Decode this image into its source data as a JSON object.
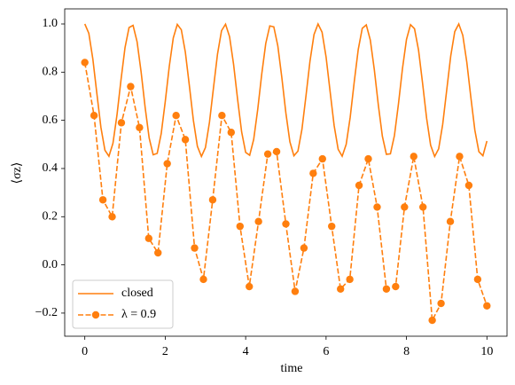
{
  "chart_data": {
    "type": "line",
    "xlabel": "time",
    "ylabel": "⟨σz⟩",
    "xlim": [
      -0.5,
      10.5
    ],
    "ylim": [
      -0.296,
      1.0626
    ],
    "xticks": [
      0,
      2,
      4,
      6,
      8,
      10
    ],
    "yticks": [
      {
        "value": -0.2,
        "label": "−0.2"
      },
      {
        "value": 0,
        "label": "0.0"
      },
      0.2,
      0.4,
      0.6,
      0.8,
      {
        "value": 1,
        "label": "1.0"
      }
    ],
    "grid": false,
    "legend": "lower left",
    "series": [
      {
        "name": "closed",
        "color": "#ff7f0e",
        "linestyle": "solid",
        "marker": "none",
        "x": [
          0,
          0.1,
          0.2,
          0.3,
          0.4,
          0.5,
          0.6,
          0.7,
          0.8,
          0.9,
          1,
          1.1,
          1.2,
          1.3,
          1.4,
          1.5,
          1.6,
          1.7,
          1.8,
          1.9,
          2,
          2.1,
          2.2,
          2.3,
          2.4,
          2.5,
          2.6,
          2.7,
          2.8,
          2.9,
          3,
          3.1,
          3.2,
          3.3,
          3.4,
          3.5,
          3.6,
          3.7,
          3.8,
          3.9,
          4,
          4.1,
          4.2,
          4.3,
          4.4,
          4.5,
          4.6,
          4.7,
          4.8,
          4.9,
          5,
          5.1,
          5.2,
          5.3,
          5.4,
          5.5,
          5.6,
          5.7,
          5.8,
          5.9,
          6,
          6.1,
          6.2,
          6.3,
          6.4,
          6.5,
          6.6,
          6.7,
          6.8,
          6.9,
          7,
          7.1,
          7.2,
          7.3,
          7.4,
          7.5,
          7.6,
          7.7,
          7.8,
          7.9,
          8,
          8.1,
          8.2,
          8.3,
          8.4,
          8.5,
          8.6,
          8.7,
          8.8,
          8.9,
          9,
          9.1,
          9.2,
          9.3,
          9.4,
          9.5,
          9.6,
          9.7,
          9.8,
          9.9,
          10
        ],
        "values": [
          1.0,
          0.961,
          0.854,
          0.711,
          0.571,
          0.476,
          0.451,
          0.505,
          0.622,
          0.768,
          0.902,
          0.985,
          0.994,
          0.926,
          0.801,
          0.654,
          0.527,
          0.457,
          0.463,
          0.545,
          0.677,
          0.823,
          0.942,
          0.998,
          0.976,
          0.883,
          0.744,
          0.6,
          0.492,
          0.45,
          0.487,
          0.592,
          0.735,
          0.875,
          0.972,
          0.999,
          0.947,
          0.832,
          0.687,
          0.552,
          0.467,
          0.455,
          0.521,
          0.645,
          0.792,
          0.919,
          0.992,
          0.988,
          0.909,
          0.777,
          0.631,
          0.511,
          0.453,
          0.472,
          0.563,
          0.701,
          0.846,
          0.956,
          1.0,
          0.966,
          0.863,
          0.72,
          0.579,
          0.48,
          0.451,
          0.5,
          0.613,
          0.759,
          0.894,
          0.982,
          0.996,
          0.933,
          0.81,
          0.663,
          0.534,
          0.459,
          0.461,
          0.537,
          0.668,
          0.815,
          0.936,
          0.997,
          0.98,
          0.891,
          0.754,
          0.609,
          0.497,
          0.45,
          0.482,
          0.583,
          0.725,
          0.867,
          0.968,
          1.0,
          0.953,
          0.841,
          0.696,
          0.559,
          0.47,
          0.453,
          0.514
        ]
      },
      {
        "name": "λ = 0.9",
        "color": "#ff7f0e",
        "linestyle": "dashed",
        "marker": "o",
        "x": [
          0,
          0.23,
          0.45,
          0.68,
          0.91,
          1.14,
          1.36,
          1.59,
          1.82,
          2.05,
          2.27,
          2.5,
          2.73,
          2.95,
          3.18,
          3.41,
          3.64,
          3.86,
          4.09,
          4.32,
          4.55,
          4.77,
          5.0,
          5.23,
          5.45,
          5.68,
          5.91,
          6.14,
          6.36,
          6.59,
          6.82,
          7.05,
          7.27,
          7.5,
          7.73,
          7.95,
          8.18,
          8.41,
          8.64,
          8.86,
          9.09,
          9.32,
          9.55,
          9.77,
          10.0
        ],
        "values": [
          0.84,
          0.62,
          0.27,
          0.2,
          0.59,
          0.74,
          0.57,
          0.11,
          0.05,
          0.42,
          0.62,
          0.52,
          0.07,
          -0.06,
          0.27,
          0.62,
          0.55,
          0.16,
          -0.09,
          0.18,
          0.46,
          0.47,
          0.17,
          -0.11,
          0.07,
          0.38,
          0.44,
          0.16,
          -0.1,
          -0.06,
          0.33,
          0.44,
          0.24,
          -0.1,
          -0.09,
          0.24,
          0.45,
          0.24,
          -0.23,
          -0.16,
          0.18,
          0.45,
          0.33,
          -0.06,
          -0.17
        ]
      }
    ]
  }
}
